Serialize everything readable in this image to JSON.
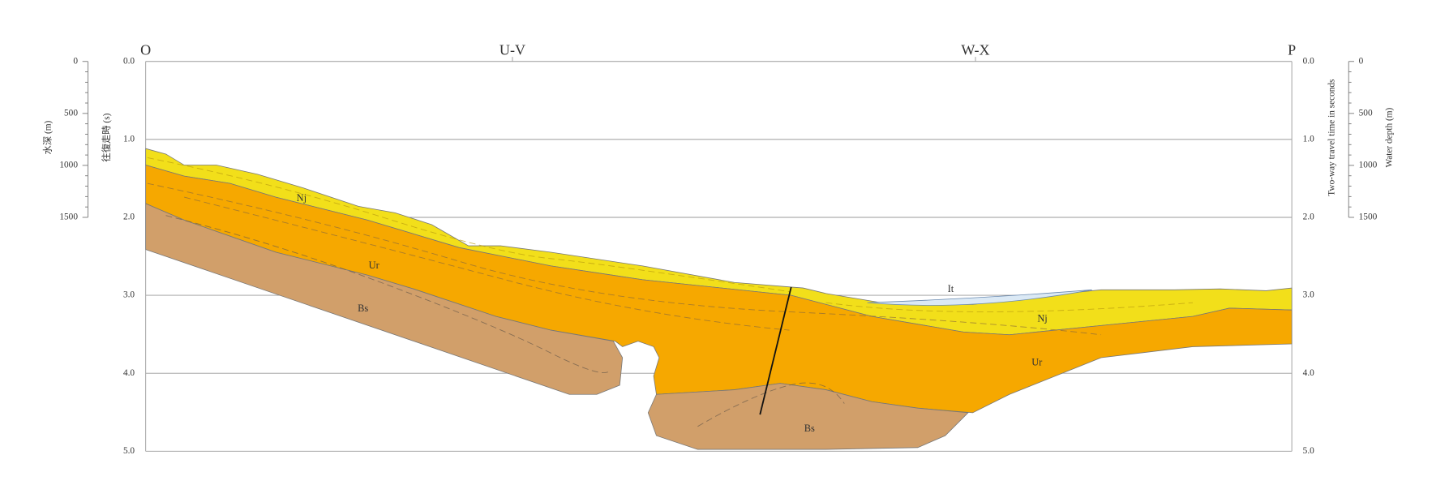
{
  "section_labels": [
    "O",
    "U-V",
    "W-X",
    "P"
  ],
  "left_axis": {
    "depth_title": "水深 (m)",
    "depth_ticks": [
      "0",
      "500",
      "1000",
      "1500"
    ],
    "time_title": "往復走時 (s)",
    "time_ticks": [
      "0.0",
      "1.0",
      "2.0",
      "3.0",
      "4.0",
      "5.0"
    ]
  },
  "right_axis": {
    "time_title": "Two-way travel time in seconds",
    "time_ticks": [
      "0.0",
      "1.0",
      "2.0",
      "3.0",
      "4.0",
      "5.0"
    ],
    "depth_title": "Water depth (m)",
    "depth_ticks": [
      "0",
      "500",
      "1000",
      "1500"
    ]
  },
  "units": [
    "Nj",
    "Ur",
    "Bs",
    "It",
    "Nj",
    "Ur",
    "Bs"
  ]
}
